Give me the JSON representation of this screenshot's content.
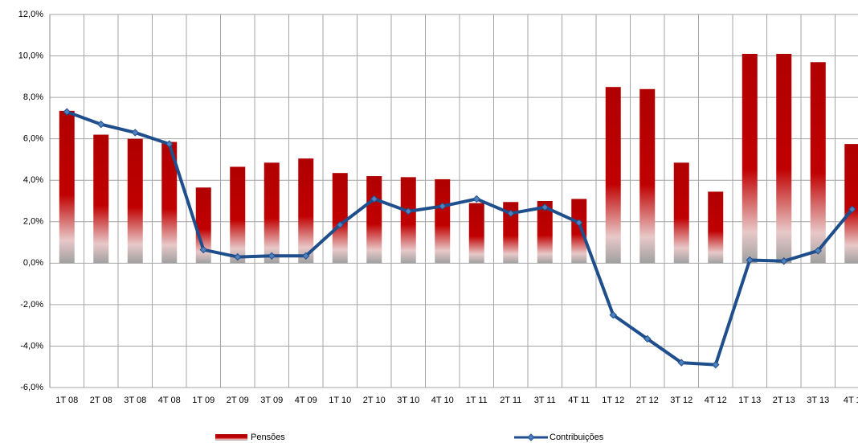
{
  "chart_data": {
    "type": "bar_line",
    "categories": [
      "1T 08",
      "2T 08",
      "3T 08",
      "4T 08",
      "1T 09",
      "2T 09",
      "3T 09",
      "4T 09",
      "1T 10",
      "2T 10",
      "3T 10",
      "4T 10",
      "1T 11",
      "2T 11",
      "3T 11",
      "4T 11",
      "1T 12",
      "2T 12",
      "3T 12",
      "4T 12",
      "1T 13",
      "2T 13",
      "3T 13",
      "4T 1"
    ],
    "series": [
      {
        "name": "Pensões",
        "type": "bar",
        "color": "#c00000",
        "values": [
          7.35,
          6.2,
          6.0,
          5.85,
          3.65,
          4.65,
          4.85,
          5.05,
          4.35,
          4.2,
          4.15,
          4.05,
          2.9,
          2.95,
          3.0,
          3.1,
          8.5,
          8.4,
          4.85,
          3.45,
          10.1,
          10.1,
          9.7,
          5.75
        ]
      },
      {
        "name": "Contribuições",
        "type": "line",
        "color": "#1f4e8c",
        "values": [
          7.3,
          6.7,
          6.3,
          5.75,
          0.65,
          0.3,
          0.35,
          0.35,
          1.85,
          3.1,
          2.5,
          2.75,
          3.1,
          2.4,
          2.7,
          1.95,
          -2.5,
          -3.65,
          -4.8,
          -4.9,
          0.15,
          0.1,
          0.6,
          2.6
        ]
      }
    ],
    "ylim": [
      -6,
      12
    ],
    "yticks": [
      {
        "value": -6,
        "label": "-6,0%"
      },
      {
        "value": -4,
        "label": "-4,0%"
      },
      {
        "value": -2,
        "label": "-2,0%"
      },
      {
        "value": 0,
        "label": "0,0%"
      },
      {
        "value": 2,
        "label": "2,0%"
      },
      {
        "value": 4,
        "label": "4,0%"
      },
      {
        "value": 6,
        "label": "6,0%"
      },
      {
        "value": 8,
        "label": "8,0%"
      },
      {
        "value": 10,
        "label": "10,0%"
      },
      {
        "value": 12,
        "label": "12,0%"
      }
    ],
    "grid": true,
    "legend": "bottom"
  }
}
